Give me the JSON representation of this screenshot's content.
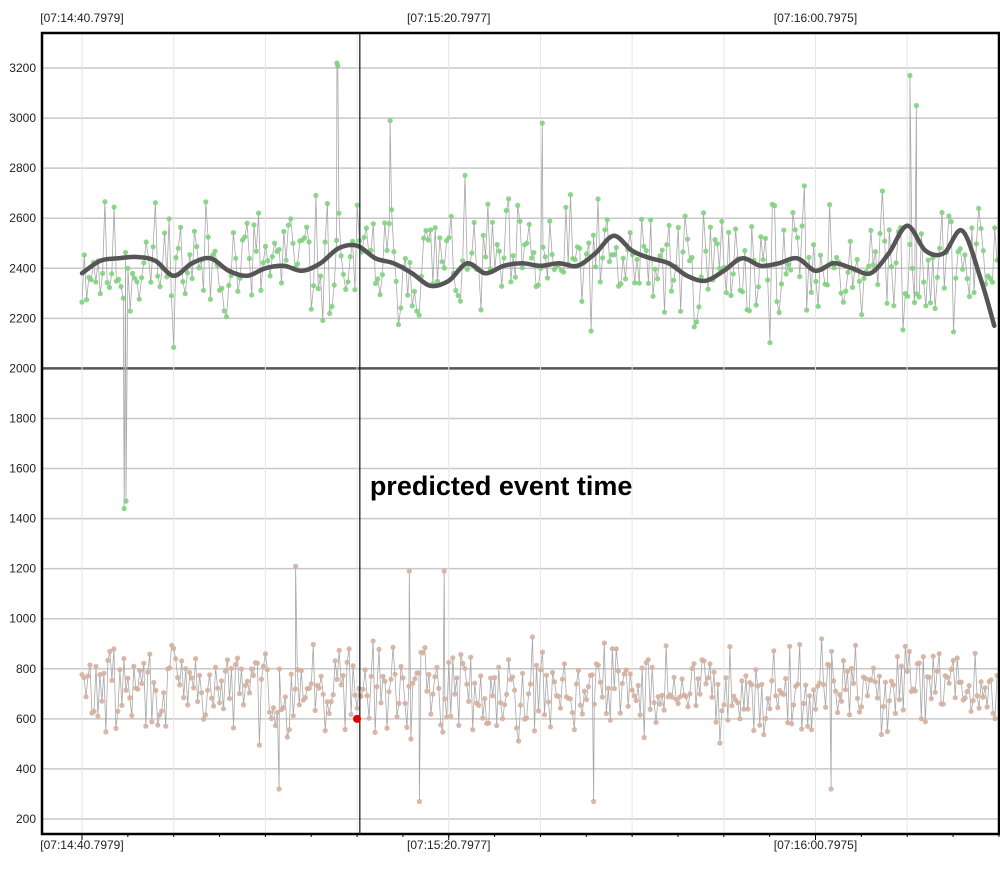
{
  "chart_data": {
    "type": "scatter",
    "title": "",
    "xlabel": "",
    "ylabel": "",
    "x_tick_labels": [
      "[07:14:40.7979]",
      "[07:15:20.7977]",
      "[07:16:00.7975]"
    ],
    "x_tick_seconds": [
      0,
      40,
      80
    ],
    "x_range_seconds": [
      0,
      100
    ],
    "ylim": [
      160,
      3340
    ],
    "y_ticks": [
      200,
      400,
      600,
      800,
      1000,
      1200,
      1400,
      1600,
      1800,
      2000,
      2200,
      2400,
      2600,
      2800,
      3000,
      3200
    ],
    "y_tick_labels": [
      "200",
      "400",
      "600",
      "800",
      "1000",
      "1200",
      "1400",
      "1600",
      "1800",
      "2000",
      "2200",
      "2400",
      "2600",
      "2800",
      "3000",
      "3200"
    ],
    "threshold_line": 2000,
    "grid": true,
    "annotation": {
      "text": "predicted event time",
      "x_seconds": 30.3
    },
    "highlight_point": {
      "x_seconds": 30.0,
      "y": 600,
      "color": "#e00000"
    },
    "colors": {
      "upper_points": "#7fd37f",
      "upper_connect": "#a8a8a8",
      "smoothed": "#555555",
      "lower_points": "#d4b0a0",
      "lower_connect": "#a8a8a8",
      "grid": "#c8c8c8",
      "frame": "#000000"
    },
    "series": [
      {
        "role": "upper-raw",
        "seed": 11,
        "count": 400,
        "x_start": 0,
        "x_end": 99.8,
        "mean": 2420,
        "spread": 230,
        "ymin": 1780,
        "ymax": 3000,
        "spikes": [
          {
            "x_seconds": 4.6,
            "y": 1440
          },
          {
            "x_seconds": 4.8,
            "y": 1470
          },
          {
            "x_seconds": 27.9,
            "y": 3210
          },
          {
            "x_seconds": 27.8,
            "y": 3220
          },
          {
            "x_seconds": 33.6,
            "y": 2990
          },
          {
            "x_seconds": 50.2,
            "y": 2980
          },
          {
            "x_seconds": 90.3,
            "y": 3170
          },
          {
            "x_seconds": 91.0,
            "y": 3050
          }
        ]
      },
      {
        "role": "smoothed",
        "x": [
          0,
          2,
          4,
          6,
          8,
          10,
          12,
          14,
          16,
          18,
          20,
          22,
          24,
          26,
          28,
          30,
          32,
          34,
          36,
          38,
          40,
          42,
          44,
          46,
          48,
          50,
          52,
          54,
          56,
          58,
          60,
          62,
          64,
          66,
          68,
          70,
          72,
          74,
          76,
          78,
          80,
          82,
          84,
          86,
          88,
          90,
          92,
          94,
          96,
          98,
          99.5
        ],
        "values": [
          2380,
          2430,
          2440,
          2445,
          2430,
          2370,
          2420,
          2440,
          2390,
          2370,
          2400,
          2410,
          2390,
          2420,
          2480,
          2490,
          2440,
          2420,
          2380,
          2330,
          2350,
          2420,
          2380,
          2410,
          2420,
          2410,
          2420,
          2410,
          2460,
          2530,
          2470,
          2440,
          2420,
          2370,
          2350,
          2390,
          2440,
          2410,
          2420,
          2440,
          2390,
          2420,
          2400,
          2380,
          2460,
          2570,
          2470,
          2460,
          2550,
          2360,
          2170
        ]
      },
      {
        "role": "lower-raw",
        "seed": 29,
        "count": 460,
        "x_start": 0,
        "x_end": 99.8,
        "mean": 720,
        "spread": 160,
        "ymin": 330,
        "ymax": 1100,
        "spikes": [
          {
            "x_seconds": 23.3,
            "y": 1210
          },
          {
            "x_seconds": 35.7,
            "y": 1190
          },
          {
            "x_seconds": 39.5,
            "y": 1190
          },
          {
            "x_seconds": 36.8,
            "y": 270
          },
          {
            "x_seconds": 55.8,
            "y": 270
          },
          {
            "x_seconds": 81.7,
            "y": 320
          },
          {
            "x_seconds": 21.5,
            "y": 320
          }
        ]
      }
    ]
  }
}
